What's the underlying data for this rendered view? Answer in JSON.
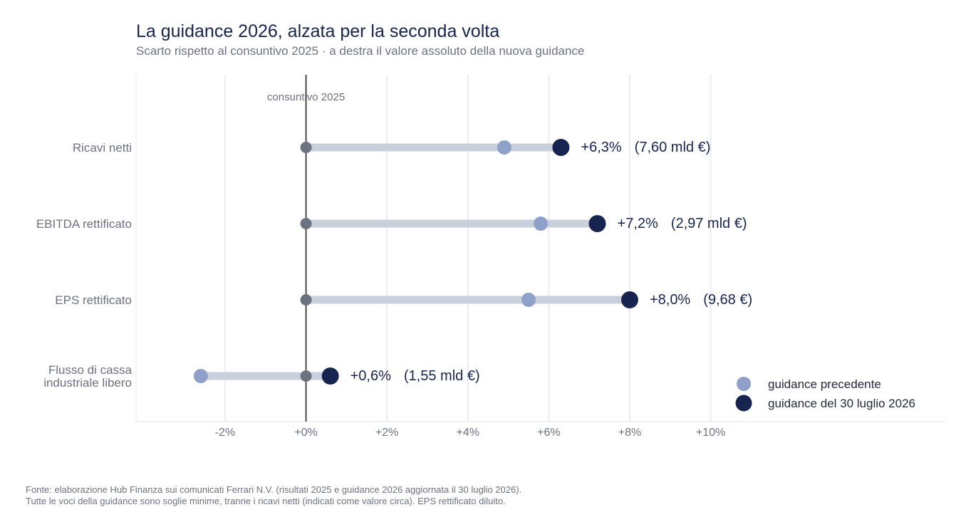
{
  "title": "La guidance 2026, alzata per la seconda volta",
  "subtitle": "Scarto rispetto al consuntivo 2025 · a destra il valore assoluto della nuova guidance",
  "footer": {
    "line1": "Fonte: elaborazione Hub Finanza sui comunicati Ferrari N.V. (risultati 2025 e guidance 2026 aggiornata il 30 luglio 2026).",
    "line2": "Tutte le voci della guidance sono soglie minime, tranne i ricavi netti (indicati come valore circa). EPS rettificato diluito."
  },
  "colors": {
    "previous": "#8fa1c8",
    "current": "#17244f",
    "baseline_dot": "#6b7280",
    "bar": "#c8d0dc",
    "grid": "#e5e7eb",
    "axis_text": "#6b7280"
  },
  "chart_data": {
    "type": "dot-plot",
    "xlim": [
      -4.2,
      15.8
    ],
    "x_ticks": [
      -2,
      0,
      2,
      4,
      6,
      8,
      10
    ],
    "x_tick_labels": [
      "-2%",
      "+0%",
      "+2%",
      "+4%",
      "+6%",
      "+8%",
      "+10%"
    ],
    "baseline_value": 0,
    "baseline_label": "consuntivo 2025",
    "grid": true,
    "legend_position": "bottom-right",
    "legend": [
      {
        "key": "previous",
        "label": "guidance precedente"
      },
      {
        "key": "current",
        "label": "guidance del 30 luglio 2026"
      }
    ],
    "categories": [
      {
        "label": [
          "Ricavi netti"
        ],
        "previous": 4.9,
        "current": 6.3,
        "pct_label": "+6,3%",
        "abs_label": "(7,60 mld €)"
      },
      {
        "label": [
          "EBITDA rettificato"
        ],
        "previous": 5.8,
        "current": 7.2,
        "pct_label": "+7,2%",
        "abs_label": "(2,97 mld €)"
      },
      {
        "label": [
          "EPS rettificato"
        ],
        "previous": 5.5,
        "current": 8.0,
        "pct_label": "+8,0%",
        "abs_label": "(9,68 €)"
      },
      {
        "label": [
          "Flusso di cassa",
          "industriale libero"
        ],
        "previous": -2.6,
        "current": 0.6,
        "pct_label": "+0,6%",
        "abs_label": "(1,55 mld €)"
      }
    ]
  }
}
